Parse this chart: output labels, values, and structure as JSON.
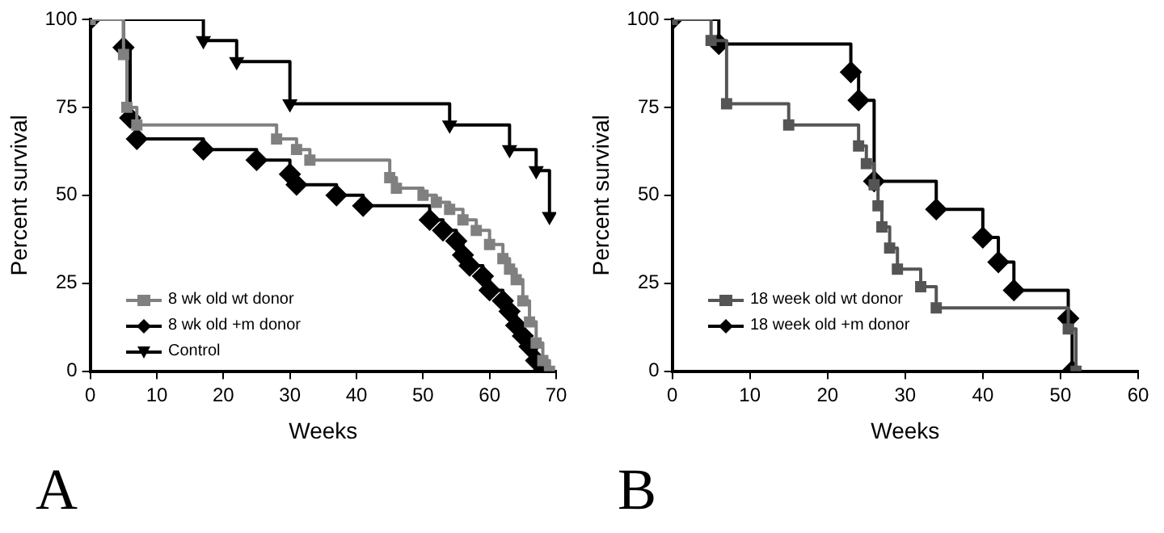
{
  "chart_data": [
    {
      "type": "step",
      "xlabel": "Weeks",
      "ylabel": "Percent survival",
      "xlim": [
        0,
        70
      ],
      "xticks": [
        0,
        10,
        20,
        30,
        40,
        50,
        60,
        70
      ],
      "ylim": [
        0,
        100
      ],
      "yticks": [
        0,
        25,
        50,
        75,
        100
      ],
      "grid": false,
      "legend": "bottom left",
      "annotations": [
        "A"
      ],
      "series": [
        {
          "name": "8 wk old wt donor",
          "color": "#808080",
          "marker": "square",
          "x": [
            0,
            5,
            5.5,
            7,
            28,
            31,
            33,
            45,
            46,
            50,
            52,
            54,
            56,
            58,
            60,
            62,
            63,
            64,
            65,
            66,
            67,
            68,
            69
          ],
          "values": [
            100,
            90,
            75,
            70,
            66,
            63,
            60,
            55,
            52,
            50,
            48,
            46,
            43,
            40,
            36,
            32,
            29,
            26,
            20,
            14,
            8,
            3,
            0
          ]
        },
        {
          "name": "8 wk old +m donor",
          "color": "#000000",
          "marker": "diamond",
          "x": [
            0,
            5,
            6,
            7,
            17,
            25,
            30,
            31,
            37,
            41,
            51,
            53,
            55,
            56,
            57,
            59,
            60,
            62,
            63,
            64,
            65,
            66,
            67,
            68
          ],
          "values": [
            100,
            92,
            72,
            66,
            63,
            60,
            56,
            53,
            50,
            47,
            43,
            40,
            37,
            33,
            30,
            27,
            23,
            20,
            17,
            13,
            10,
            7,
            3,
            0
          ]
        },
        {
          "name": "Control",
          "color": "#000000",
          "marker": "triangle",
          "x": [
            0,
            17,
            22,
            30,
            54,
            63,
            67,
            69
          ],
          "values": [
            100,
            94,
            88,
            76,
            70,
            63,
            57,
            44
          ]
        }
      ]
    },
    {
      "type": "step",
      "xlabel": "Weeks",
      "ylabel": "Percent survival",
      "xlim": [
        0,
        60
      ],
      "xticks": [
        0,
        10,
        20,
        30,
        40,
        50,
        60
      ],
      "ylim": [
        0,
        100
      ],
      "yticks": [
        0,
        25,
        50,
        75,
        100
      ],
      "grid": false,
      "legend": "bottom left",
      "annotations": [
        "B"
      ],
      "series": [
        {
          "name": "18 week old wt donor",
          "color": "#555555",
          "marker": "square",
          "x": [
            0,
            5,
            7,
            15,
            24,
            25,
            26,
            26.5,
            27,
            28,
            29,
            32,
            34,
            51,
            52
          ],
          "values": [
            100,
            94,
            76,
            70,
            64,
            59,
            53,
            47,
            41,
            35,
            29,
            24,
            18,
            12,
            0
          ]
        },
        {
          "name": "18 week old +m donor",
          "color": "#000000",
          "marker": "diamond",
          "x": [
            0,
            6,
            23,
            24,
            26,
            34,
            40,
            42,
            44,
            51,
            51.5
          ],
          "values": [
            100,
            93,
            85,
            77,
            54,
            46,
            38,
            31,
            23,
            15,
            0
          ]
        }
      ]
    }
  ]
}
